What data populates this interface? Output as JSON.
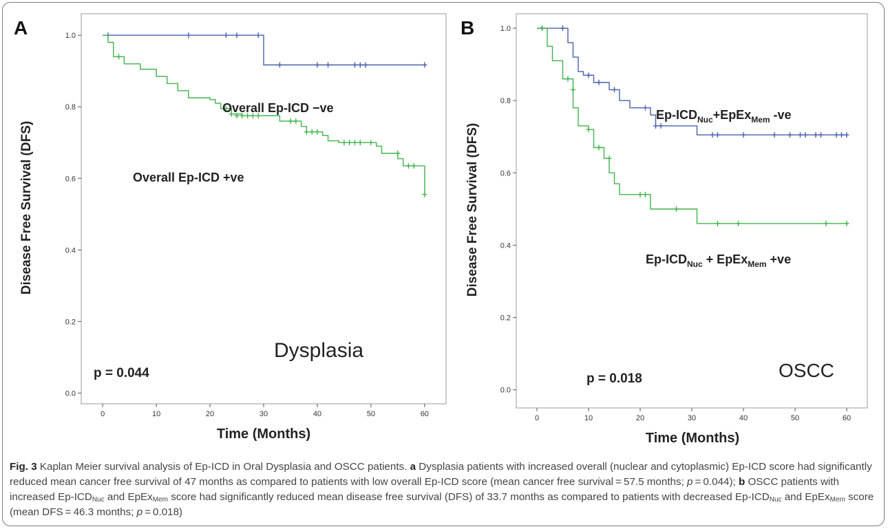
{
  "chart_data": [
    {
      "panel_label": "A",
      "type": "line",
      "subtype": "kaplan-meier",
      "xlabel": "Time (Months)",
      "ylabel": "Disease Free Survival (DFS)",
      "xlim": [
        -4,
        64
      ],
      "ylim": [
        -0.03,
        1.06
      ],
      "xticks": [
        "0",
        "10",
        "20",
        "30",
        "40",
        "50",
        "60"
      ],
      "yticks": [
        "0.0",
        "0.2",
        "0.4",
        "0.6",
        "0.8",
        "1.0"
      ],
      "xtick_values": [
        0,
        10,
        20,
        30,
        40,
        50,
        60
      ],
      "ytick_values": [
        0,
        0.2,
        0.4,
        0.6,
        0.8,
        1.0
      ],
      "annotation": "Dysplasia",
      "pvalue": "p = 0.044",
      "series": [
        {
          "name": "Overall Ep-ICD −ve",
          "color": "#4a5fb0",
          "steps": [
            [
              0,
              1.0
            ],
            [
              30,
              0.917
            ],
            [
              60,
              0.917
            ]
          ],
          "censored": [
            [
              1,
              1.0
            ],
            [
              16,
              1.0
            ],
            [
              23,
              1.0
            ],
            [
              25,
              1.0
            ],
            [
              29,
              1.0
            ],
            [
              33,
              0.917
            ],
            [
              40,
              0.917
            ],
            [
              42,
              0.917
            ],
            [
              47,
              0.917
            ],
            [
              48,
              0.917
            ],
            [
              49,
              0.917
            ],
            [
              60,
              0.917
            ]
          ]
        },
        {
          "name": "Overall Ep-ICD +ve",
          "color": "#3fb44a",
          "steps": [
            [
              0,
              1.0
            ],
            [
              1,
              0.98
            ],
            [
              2,
              0.94
            ],
            [
              4,
              0.92
            ],
            [
              7,
              0.905
            ],
            [
              10,
              0.885
            ],
            [
              12,
              0.865
            ],
            [
              14,
              0.845
            ],
            [
              16,
              0.825
            ],
            [
              20,
              0.82
            ],
            [
              21,
              0.81
            ],
            [
              22,
              0.795
            ],
            [
              24,
              0.78
            ],
            [
              26,
              0.775
            ],
            [
              33,
              0.76
            ],
            [
              37,
              0.745
            ],
            [
              38,
              0.73
            ],
            [
              41,
              0.72
            ],
            [
              42,
              0.705
            ],
            [
              44,
              0.7
            ],
            [
              51,
              0.69
            ],
            [
              52,
              0.67
            ],
            [
              55,
              0.655
            ],
            [
              56,
              0.635
            ],
            [
              60,
              0.555
            ]
          ],
          "censored": [
            [
              3,
              0.94
            ],
            [
              23,
              0.795
            ],
            [
              24,
              0.78
            ],
            [
              25,
              0.775
            ],
            [
              26,
              0.775
            ],
            [
              27,
              0.775
            ],
            [
              28,
              0.775
            ],
            [
              29,
              0.775
            ],
            [
              35,
              0.76
            ],
            [
              36,
              0.76
            ],
            [
              38,
              0.73
            ],
            [
              39,
              0.73
            ],
            [
              40,
              0.73
            ],
            [
              45,
              0.7
            ],
            [
              46,
              0.7
            ],
            [
              47,
              0.7
            ],
            [
              48,
              0.7
            ],
            [
              50,
              0.7
            ],
            [
              55,
              0.67
            ],
            [
              57,
              0.635
            ],
            [
              58,
              0.635
            ],
            [
              60,
              0.555
            ]
          ]
        }
      ],
      "labels": [
        "Overall Ep-ICD −ve",
        "Overall Ep-ICD +ve"
      ]
    },
    {
      "panel_label": "B",
      "type": "line",
      "subtype": "kaplan-meier",
      "xlabel": "Time (Months)",
      "ylabel": "Disease Free Survival (DFS)",
      "xlim": [
        -4,
        64
      ],
      "ylim": [
        -0.05,
        1.04
      ],
      "xticks": [
        "0",
        "10",
        "20",
        "30",
        "40",
        "50",
        "60"
      ],
      "yticks": [
        "0.0",
        "0.2",
        "0.4",
        "0.6",
        "0.8",
        "1.0"
      ],
      "xtick_values": [
        0,
        10,
        20,
        30,
        40,
        50,
        60
      ],
      "ytick_values": [
        0,
        0.2,
        0.4,
        0.6,
        0.8,
        1.0
      ],
      "annotation": "OSCC",
      "pvalue": "p = 0.018",
      "series": [
        {
          "name": "Ep-ICDNuc+EpExMem -ve",
          "color": "#4a5fb0",
          "steps": [
            [
              0,
              1.0
            ],
            [
              6,
              0.96
            ],
            [
              7,
              0.92
            ],
            [
              8,
              0.88
            ],
            [
              9,
              0.87
            ],
            [
              11,
              0.85
            ],
            [
              14,
              0.83
            ],
            [
              16,
              0.8
            ],
            [
              18,
              0.78
            ],
            [
              22,
              0.76
            ],
            [
              23,
              0.73
            ],
            [
              31,
              0.705
            ],
            [
              60,
              0.705
            ]
          ],
          "censored": [
            [
              1,
              1.0
            ],
            [
              5,
              1.0
            ],
            [
              10,
              0.87
            ],
            [
              12,
              0.85
            ],
            [
              15,
              0.83
            ],
            [
              21,
              0.78
            ],
            [
              23,
              0.73
            ],
            [
              24,
              0.73
            ],
            [
              34,
              0.705
            ],
            [
              35,
              0.705
            ],
            [
              40,
              0.705
            ],
            [
              46,
              0.705
            ],
            [
              49,
              0.705
            ],
            [
              51,
              0.705
            ],
            [
              52,
              0.705
            ],
            [
              54,
              0.705
            ],
            [
              55,
              0.705
            ],
            [
              58,
              0.705
            ],
            [
              59,
              0.705
            ],
            [
              60,
              0.705
            ]
          ]
        },
        {
          "name": "Ep-ICDNuc + EpExMem +ve",
          "color": "#3fb44a",
          "steps": [
            [
              0,
              1.0
            ],
            [
              2,
              0.95
            ],
            [
              3,
              0.91
            ],
            [
              5,
              0.86
            ],
            [
              7,
              0.78
            ],
            [
              8,
              0.73
            ],
            [
              10,
              0.72
            ],
            [
              11,
              0.67
            ],
            [
              13,
              0.64
            ],
            [
              14,
              0.6
            ],
            [
              15,
              0.57
            ],
            [
              16,
              0.54
            ],
            [
              22,
              0.5
            ],
            [
              31,
              0.46
            ],
            [
              60,
              0.46
            ]
          ],
          "censored": [
            [
              1,
              1.0
            ],
            [
              6,
              0.86
            ],
            [
              7,
              0.83
            ],
            [
              10,
              0.72
            ],
            [
              12,
              0.67
            ],
            [
              14,
              0.64
            ],
            [
              20,
              0.54
            ],
            [
              21,
              0.54
            ],
            [
              27,
              0.5
            ],
            [
              35,
              0.46
            ],
            [
              39,
              0.46
            ],
            [
              56,
              0.46
            ],
            [
              60,
              0.46
            ]
          ]
        }
      ],
      "labels": [
        {
          "main": "Ep-ICD",
          "sub1": "Nuc",
          "mid": "+EpEx",
          "sub2": "Mem",
          "tail": " -ve"
        },
        {
          "main": "Ep-ICD",
          "sub1": "Nuc",
          "mid": " + EpEx",
          "sub2": "Mem",
          "tail": " +ve"
        }
      ]
    }
  ],
  "caption": {
    "fig_label": "Fig. 3",
    "title": " Kaplan Meier survival analysis of Ep-ICD in Oral Dysplasia and OSCC patients. ",
    "a_label": "a",
    "a_text_1": " Dysplasia patients with increased overall (nuclear and cytoplasmic) Ep-ICD score had significantly reduced mean cancer free survival of 47 months as compared to patients with low overall Ep-ICD score (mean cancer free survival = 57.5 months; ",
    "a_p": "p",
    "a_text_2": " = 0.044); ",
    "b_label": "b",
    "b_text_1": " OSCC patients with increased Ep-ICD",
    "b_sub_nuc": "Nuc",
    "b_text_2": " and EpEx",
    "b_sub_mem": "Mem",
    "b_text_3": " score had significantly reduced mean disease free survival (DFS) of 33.7 months as compared to patients with decreased Ep-ICD",
    "b_sub_nuc_2": "Nuc",
    "b_text_4": " and EpEx",
    "b_sub_mem_2": "Mem",
    "b_text_5": " score (mean DFS = 46.3 months; ",
    "b_p": "p",
    "b_text_6": " = 0.018)"
  }
}
